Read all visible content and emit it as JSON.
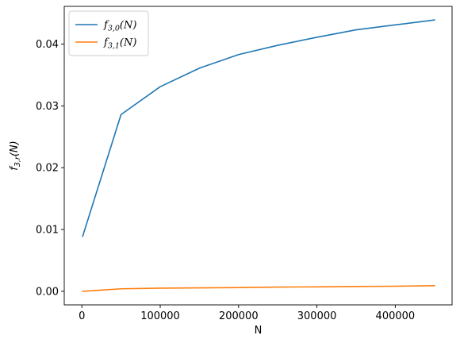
{
  "chart_data": {
    "type": "line",
    "title": "",
    "xlabel": "N",
    "ylabel": "f_{3,r}(N)",
    "xlim": [
      -22500,
      472500
    ],
    "ylim": [
      -0.0022,
      0.0461
    ],
    "xticks": [
      0,
      100000,
      200000,
      300000,
      400000
    ],
    "xtick_labels": [
      "0",
      "100000",
      "200000",
      "300000",
      "400000"
    ],
    "yticks": [
      0.0,
      0.01,
      0.02,
      0.03,
      0.04
    ],
    "ytick_labels": [
      "0.00",
      "0.01",
      "0.02",
      "0.03",
      "0.04"
    ],
    "grid": false,
    "legend_position": "top-left",
    "x": [
      1000,
      50000,
      100000,
      150000,
      200000,
      250000,
      300000,
      350000,
      400000,
      450000
    ],
    "series": [
      {
        "name": "f_{3,0}(N)",
        "color": "#1f77b4",
        "values": [
          0.0089,
          0.0286,
          0.0331,
          0.0361,
          0.0383,
          0.0398,
          0.0411,
          0.0423,
          0.0431,
          0.0439
        ]
      },
      {
        "name": "f_{3,1}(N)",
        "color": "#ff7f0e",
        "values": [
          0.0,
          0.0004,
          0.0005,
          0.00055,
          0.0006,
          0.00068,
          0.00072,
          0.00078,
          0.00082,
          0.0009
        ]
      }
    ]
  }
}
